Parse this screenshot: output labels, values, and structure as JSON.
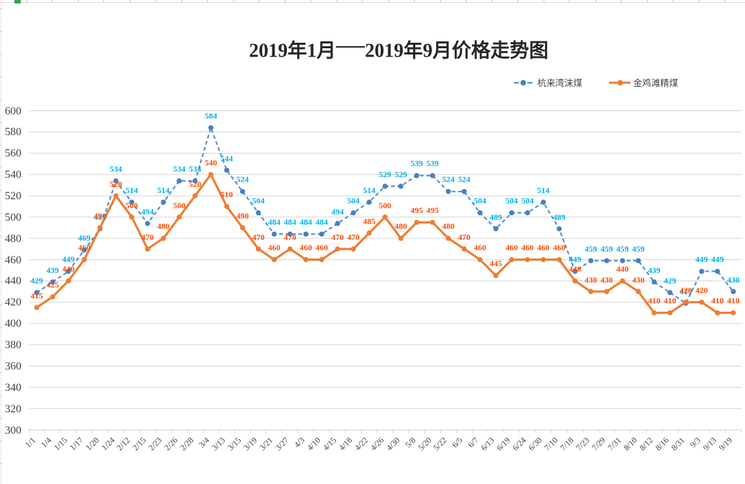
{
  "chart_data": {
    "type": "line",
    "title": "2019年1月——2019年9月价格走势图",
    "title_segments": [
      "2019年1月",
      "——",
      "2019年9月价格走势图"
    ],
    "categories": [
      "1/1",
      "1/4",
      "1/15",
      "1/17",
      "1/20",
      "1/24",
      "2/12",
      "2/15",
      "2/23",
      "2/26",
      "2/28",
      "3/4",
      "3/13",
      "3/15",
      "3/19",
      "3/21",
      "3/27",
      "4/3",
      "4/10",
      "4/15",
      "4/18",
      "4/22",
      "4/26",
      "4/30",
      "5/8",
      "5/20",
      "5/22",
      "6/5",
      "6/7",
      "6/13",
      "6/19",
      "6/24",
      "6/30",
      "7/10",
      "7/18",
      "7/23",
      "7/29",
      "7/31",
      "8/10",
      "8/12",
      "8/16",
      "8/31",
      "9/3",
      "9/13",
      "9/19"
    ],
    "series": [
      {
        "name": "杭来湾沫煤",
        "style": "dashed",
        "line_color": "#5b8fcb",
        "marker_color": "#4a7ec0",
        "label_color": "#00b0f0",
        "values": [
          429,
          439,
          449,
          469,
          489,
          534,
          514,
          494,
          514,
          534,
          534,
          584,
          544,
          524,
          504,
          484,
          484,
          484,
          484,
          494,
          504,
          514,
          529,
          529,
          539,
          539,
          524,
          524,
          504,
          489,
          504,
          504,
          514,
          489,
          449,
          459,
          459,
          459,
          459,
          439,
          429,
          419,
          449,
          449,
          430
        ]
      },
      {
        "name": "金鸡滩精煤",
        "style": "solid",
        "line_color": "#ed7d31",
        "marker_color": "#ed7d31",
        "label_color": "#ff4b00",
        "values": [
          415,
          425,
          440,
          460,
          490,
          520,
          500,
          470,
          480,
          500,
          520,
          540,
          510,
          490,
          470,
          460,
          470,
          460,
          460,
          470,
          470,
          485,
          500,
          480,
          495,
          495,
          480,
          470,
          460,
          445,
          460,
          460,
          460,
          460,
          440,
          430,
          430,
          440,
          430,
          410,
          410,
          420,
          420,
          410,
          410
        ]
      }
    ],
    "ylim": [
      300,
      600
    ],
    "ytick_step": 20,
    "yticks": [
      300,
      320,
      340,
      360,
      380,
      400,
      420,
      440,
      460,
      480,
      500,
      520,
      540,
      560,
      580,
      600
    ],
    "grid": true,
    "legend_position": "top-right",
    "colors": {
      "gridline": "#d9d9d9",
      "axis_tick": "#d0d0d0",
      "axis_text": "#404040",
      "title_text": "#262626"
    }
  }
}
